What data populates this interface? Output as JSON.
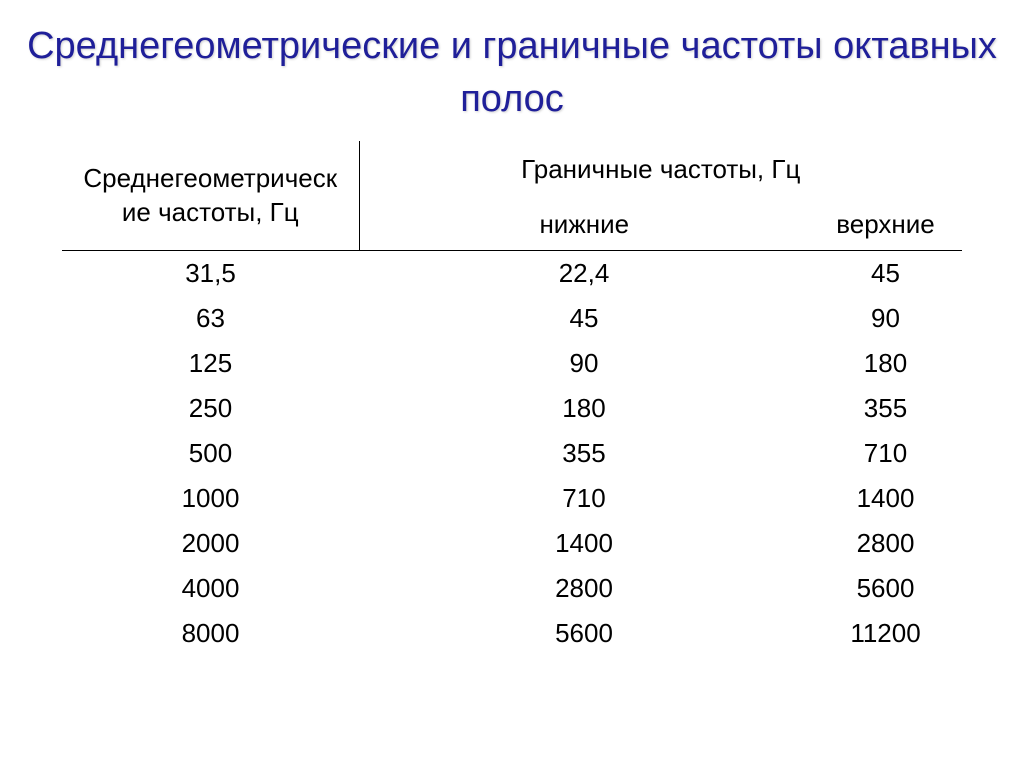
{
  "title": "Среднегеометрические и граничные частоты октавных полос",
  "table": {
    "header": {
      "geometric": "Среднегеометрическ\nие частоты, Гц",
      "boundary": "Граничные частоты, Гц",
      "lower": "нижние",
      "upper": "верхние"
    },
    "rows": [
      {
        "geo": "31,5",
        "lower": "22,4",
        "upper": "45"
      },
      {
        "geo": "63",
        "lower": "45",
        "upper": "90"
      },
      {
        "geo": "125",
        "lower": "90",
        "upper": "180"
      },
      {
        "geo": "250",
        "lower": "180",
        "upper": "355"
      },
      {
        "geo": "500",
        "lower": "355",
        "upper": "710"
      },
      {
        "geo": "1000",
        "lower": "710",
        "upper": "1400"
      },
      {
        "geo": "2000",
        "lower": "1400",
        "upper": "2800"
      },
      {
        "geo": "4000",
        "lower": "2800",
        "upper": "5600"
      },
      {
        "geo": "8000",
        "lower": "5600",
        "upper": "11200"
      }
    ]
  },
  "colors": {
    "title_color": "#1f1f99",
    "text_color": "#000000",
    "background": "#ffffff",
    "border_color": "#000000"
  },
  "typography": {
    "title_fontsize": 38,
    "cell_fontsize": 26,
    "font_family": "Arial"
  }
}
